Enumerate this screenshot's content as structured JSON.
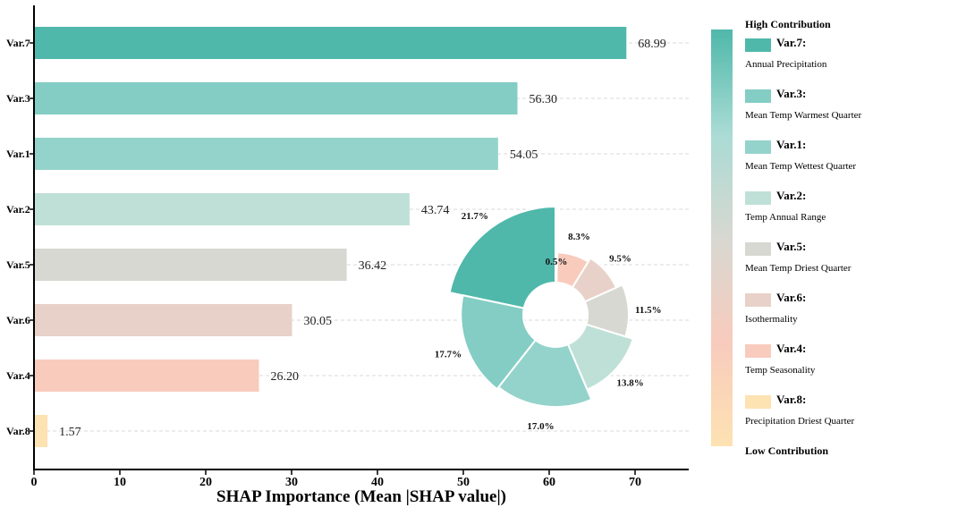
{
  "chart_data": {
    "type": "bar",
    "orientation": "horizontal",
    "xlabel": "SHAP Importance (Mean |SHAP value|)",
    "xlim": [
      0,
      76
    ],
    "x_ticks": [
      0,
      10,
      20,
      30,
      40,
      50,
      60,
      70
    ],
    "grid": "dashed horizontal lines",
    "categories": [
      "Var.7",
      "Var.3",
      "Var.1",
      "Var.2",
      "Var.5",
      "Var.6",
      "Var.4",
      "Var.8"
    ],
    "values": [
      68.99,
      56.3,
      54.05,
      43.74,
      36.42,
      30.05,
      26.2,
      1.57
    ],
    "value_labels": [
      "68.99",
      "56.30",
      "54.05",
      "43.74",
      "36.42",
      "30.05",
      "26.20",
      "1.57"
    ],
    "colors": [
      "#4fb8aa",
      "#83cdc4",
      "#94d3cb",
      "#bfe0d7",
      "#d7d8d1",
      "#e8d1c8",
      "#f8cbbd",
      "#fde2b2"
    ],
    "inset_pie": {
      "type": "pie",
      "style": "rose-donut",
      "labels": [
        "Var.7",
        "Var.3",
        "Var.1",
        "Var.2",
        "Var.5",
        "Var.6",
        "Var.4",
        "Var.8"
      ],
      "percent_labels": [
        "21.7%",
        "17.7%",
        "17.0%",
        "13.8%",
        "11.5%",
        "9.5%",
        "8.3%",
        "0.5%"
      ],
      "values": [
        21.7,
        17.7,
        17.0,
        13.8,
        11.5,
        9.5,
        8.3,
        0.5
      ]
    },
    "legend": {
      "placement": "right",
      "top_label": "High Contribution",
      "bottom_label": "Low Contribution",
      "gradient": [
        "#4fb8aa",
        "#a9dbd4",
        "#d7d8d1",
        "#f8cbbd",
        "#fde2b2"
      ],
      "entries": [
        {
          "name": "Var.7:",
          "description": "Annual Precipitation",
          "color": "#4fb8aa"
        },
        {
          "name": "Var.3:",
          "description": "Mean Temp Warmest Quarter",
          "color": "#83cdc4"
        },
        {
          "name": "Var.1:",
          "description": "Mean Temp Wettest Quarter",
          "color": "#94d3cb"
        },
        {
          "name": "Var.2:",
          "description": "Temp Annual Range",
          "color": "#bfe0d7"
        },
        {
          "name": "Var.5:",
          "description": "Mean Temp Driest Quarter",
          "color": "#d7d8d1"
        },
        {
          "name": "Var.6:",
          "description": "Isothermality",
          "color": "#e8d1c8"
        },
        {
          "name": "Var.4:",
          "description": "Temp Seasonality",
          "color": "#f8cbbd"
        },
        {
          "name": "Var.8:",
          "description": "Precipitation Driest Quarter",
          "color": "#fde2b2"
        }
      ]
    }
  }
}
